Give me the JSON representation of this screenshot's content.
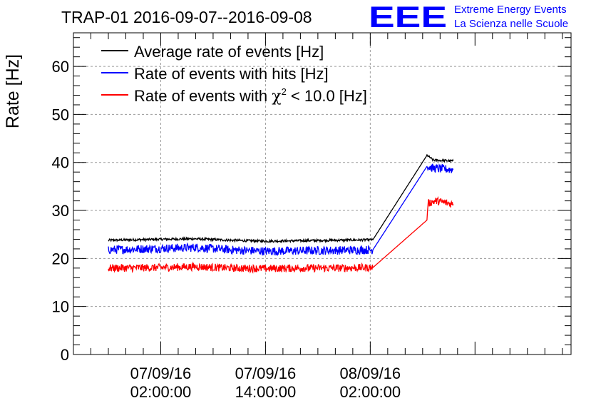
{
  "header": {
    "title": "TRAP-01 2016-09-07--2016-09-08",
    "logo_text": "EEE",
    "org_line1": "Extreme Energy Events",
    "org_line2": "La Scienza nelle Scuole"
  },
  "chart_data": {
    "type": "line",
    "title": "TRAP-01 2016-09-07--2016-09-08",
    "xlabel": "",
    "ylabel": "Rate [Hz]",
    "ylim": [
      0,
      67
    ],
    "xlim_hours": [
      -8,
      49
    ],
    "grid": true,
    "legend_position": "top-left",
    "y_ticks": [
      0,
      10,
      20,
      30,
      40,
      50,
      60
    ],
    "x_ticks": [
      {
        "hour": 2,
        "date": "07/09/16",
        "time": "02:00:00"
      },
      {
        "hour": 14,
        "date": "07/09/16",
        "time": "14:00:00"
      },
      {
        "hour": 26,
        "date": "08/09/16",
        "time": "02:00:00"
      }
    ],
    "legend": {
      "s1": "Average rate of events [Hz]",
      "s2": "Rate of events with hits [Hz]",
      "s3_prefix": "Rate of events with ",
      "s3_chi": "χ",
      "s3_exp": "2",
      "s3_suffix": " < 10.0 [Hz]"
    },
    "series": [
      {
        "name": "Average rate of events [Hz]",
        "color": "#000000",
        "noise": 0.25,
        "points": [
          [
            -4,
            23.8
          ],
          [
            2,
            24.0
          ],
          [
            6,
            24.1
          ],
          [
            10,
            23.8
          ],
          [
            14,
            23.6
          ],
          [
            18,
            23.7
          ],
          [
            22,
            23.8
          ],
          [
            26.3,
            23.9
          ],
          [
            32.5,
            41.5
          ],
          [
            33.2,
            40.5
          ],
          [
            35.5,
            40.3
          ]
        ]
      },
      {
        "name": "Rate of events with hits [Hz]",
        "color": "#0000ff",
        "noise": 0.9,
        "points": [
          [
            -4,
            21.8
          ],
          [
            2,
            22.1
          ],
          [
            6,
            22.3
          ],
          [
            10,
            21.8
          ],
          [
            14,
            21.5
          ],
          [
            18,
            21.6
          ],
          [
            22,
            21.7
          ],
          [
            26.3,
            21.8
          ],
          [
            32.5,
            39.2
          ],
          [
            33.2,
            38.8
          ],
          [
            35.5,
            38.5
          ]
        ]
      },
      {
        "name": "Rate of events with chi2 < 10.0 [Hz]",
        "color": "#ff0000",
        "noise": 0.8,
        "points": [
          [
            -4,
            18.0
          ],
          [
            2,
            18.1
          ],
          [
            6,
            18.3
          ],
          [
            10,
            18.0
          ],
          [
            14,
            17.9
          ],
          [
            18,
            18.0
          ],
          [
            22,
            18.0
          ],
          [
            26.3,
            18.1
          ],
          [
            32.5,
            28.0
          ],
          [
            32.6,
            31.5
          ],
          [
            33.5,
            32.0
          ],
          [
            35.5,
            31.3
          ]
        ]
      }
    ]
  },
  "colors": {
    "axis": "#000000",
    "grid": "#9a9a9a",
    "logo_blue": "#0000ff"
  }
}
